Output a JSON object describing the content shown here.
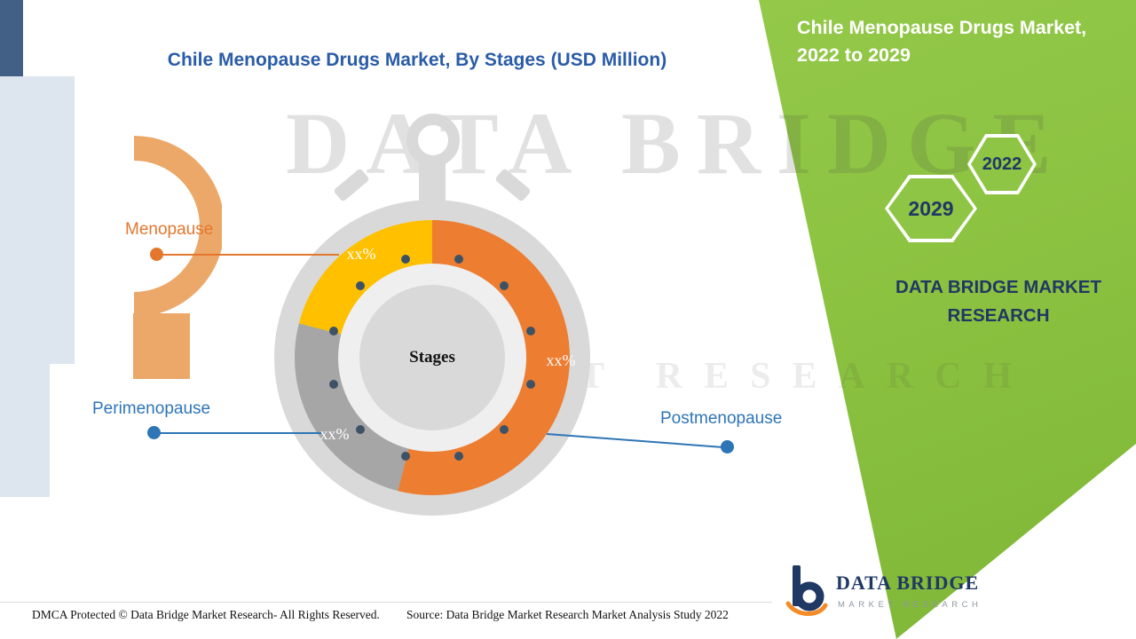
{
  "title": "Chile Menopause Drugs Market, By Stages (USD Million)",
  "watermark": {
    "line1": "DATA BRIDGE",
    "line2": "MARKET RESEARCH"
  },
  "chart_data": {
    "type": "pie",
    "variant": "donut-inside-stopwatch",
    "title": "Chile Menopause Drugs Market, By Stages (USD Million)",
    "units": "USD Million",
    "center_label": "Stages",
    "tick_dots": 12,
    "legend_position": "callout-labels",
    "segments": [
      {
        "label": "Postmenopause",
        "value_label": "xx%",
        "pct_estimated": 54,
        "color": "#ED7D31"
      },
      {
        "label": "Perimenopause",
        "value_label": "xx%",
        "pct_estimated": 25,
        "color": "#A6A6A6"
      },
      {
        "label": "Menopause",
        "value_label": "xx%",
        "pct_estimated": 21,
        "color": "#FFC000"
      }
    ]
  },
  "callouts": {
    "menopause": {
      "text": "Menopause",
      "color": "#E4772E"
    },
    "perimenopause": {
      "text": "Perimenopause",
      "color": "#2E75B6"
    },
    "postmenopause": {
      "text": "Postmenopause",
      "color": "#2E75B6"
    }
  },
  "side_panel": {
    "title": "Chile Menopause Drugs Market, 2022 to 2029",
    "hexagons": [
      "2029",
      "2022"
    ],
    "brand": "DATA BRIDGE MARKET RESEARCH",
    "accent_green": "#8EC544",
    "navy": "#1F3864"
  },
  "footer": {
    "dmca": "DMCA Protected © Data Bridge Market Research- All Rights Reserved.",
    "source": "Source: Data Bridge Market Research Market Analysis Study 2022"
  },
  "logo": {
    "name": "DATA BRIDGE",
    "tagline": "MARKET RESEARCH"
  }
}
